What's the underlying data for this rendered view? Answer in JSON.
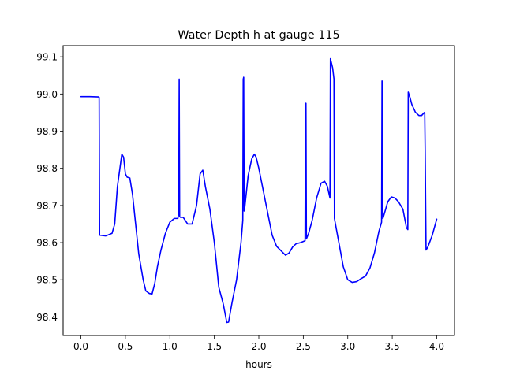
{
  "chart_data": {
    "type": "line",
    "title": "Water Depth h at gauge 115",
    "xlabel": "hours",
    "ylabel": "",
    "xlim": [
      -0.2,
      4.2
    ],
    "ylim": [
      98.35,
      99.13
    ],
    "grid": false,
    "x_ticks": [
      0.0,
      0.5,
      1.0,
      1.5,
      2.0,
      2.5,
      3.0,
      3.5,
      4.0
    ],
    "x_tick_labels": [
      "0.0",
      "0.5",
      "1.0",
      "1.5",
      "2.0",
      "2.5",
      "3.0",
      "3.5",
      "4.0"
    ],
    "y_ticks": [
      98.4,
      98.5,
      98.6,
      98.7,
      98.8,
      98.9,
      99.0,
      99.1
    ],
    "y_tick_labels": [
      "98.4",
      "98.5",
      "98.6",
      "98.7",
      "98.8",
      "98.9",
      "99.0",
      "99.1"
    ],
    "series": [
      {
        "color": "#0000ff",
        "points": [
          [
            0.0,
            98.993
          ],
          [
            0.1,
            98.993
          ],
          [
            0.2,
            98.992
          ],
          [
            0.205,
            98.991
          ],
          [
            0.21,
            98.62
          ],
          [
            0.28,
            98.618
          ],
          [
            0.35,
            98.625
          ],
          [
            0.38,
            98.65
          ],
          [
            0.41,
            98.75
          ],
          [
            0.46,
            98.838
          ],
          [
            0.48,
            98.83
          ],
          [
            0.5,
            98.785
          ],
          [
            0.52,
            98.776
          ],
          [
            0.55,
            98.774
          ],
          [
            0.58,
            98.73
          ],
          [
            0.65,
            98.57
          ],
          [
            0.7,
            98.5
          ],
          [
            0.73,
            98.47
          ],
          [
            0.77,
            98.463
          ],
          [
            0.8,
            98.462
          ],
          [
            0.83,
            98.49
          ],
          [
            0.86,
            98.535
          ],
          [
            0.9,
            98.58
          ],
          [
            0.95,
            98.625
          ],
          [
            1.0,
            98.655
          ],
          [
            1.05,
            98.665
          ],
          [
            1.09,
            98.665
          ],
          [
            1.1,
            98.68
          ],
          [
            1.105,
            99.04
          ],
          [
            1.11,
            98.67
          ],
          [
            1.12,
            98.668
          ],
          [
            1.15,
            98.668
          ],
          [
            1.2,
            98.65
          ],
          [
            1.25,
            98.65
          ],
          [
            1.3,
            98.7
          ],
          [
            1.34,
            98.785
          ],
          [
            1.37,
            98.795
          ],
          [
            1.4,
            98.75
          ],
          [
            1.45,
            98.69
          ],
          [
            1.5,
            98.6
          ],
          [
            1.55,
            98.48
          ],
          [
            1.6,
            98.435
          ],
          [
            1.64,
            98.385
          ],
          [
            1.66,
            98.386
          ],
          [
            1.7,
            98.44
          ],
          [
            1.75,
            98.5
          ],
          [
            1.8,
            98.6
          ],
          [
            1.82,
            98.66
          ],
          [
            1.825,
            99.04
          ],
          [
            1.83,
            99.045
          ],
          [
            1.835,
            98.685
          ],
          [
            1.84,
            98.69
          ],
          [
            1.88,
            98.78
          ],
          [
            1.92,
            98.825
          ],
          [
            1.95,
            98.838
          ],
          [
            1.97,
            98.83
          ],
          [
            2.0,
            98.8
          ],
          [
            2.05,
            98.74
          ],
          [
            2.1,
            98.68
          ],
          [
            2.15,
            98.62
          ],
          [
            2.2,
            98.59
          ],
          [
            2.25,
            98.578
          ],
          [
            2.3,
            98.566
          ],
          [
            2.34,
            98.572
          ],
          [
            2.38,
            98.588
          ],
          [
            2.42,
            98.597
          ],
          [
            2.47,
            98.6
          ],
          [
            2.5,
            98.603
          ],
          [
            2.52,
            98.605
          ],
          [
            2.525,
            98.975
          ],
          [
            2.53,
            98.975
          ],
          [
            2.535,
            98.61
          ],
          [
            2.56,
            98.625
          ],
          [
            2.6,
            98.66
          ],
          [
            2.65,
            98.72
          ],
          [
            2.7,
            98.76
          ],
          [
            2.74,
            98.765
          ],
          [
            2.77,
            98.752
          ],
          [
            2.8,
            98.72
          ],
          [
            2.805,
            99.095
          ],
          [
            2.83,
            99.07
          ],
          [
            2.845,
            99.04
          ],
          [
            2.85,
            98.665
          ],
          [
            2.9,
            98.6
          ],
          [
            2.95,
            98.535
          ],
          [
            3.0,
            98.5
          ],
          [
            3.05,
            98.493
          ],
          [
            3.1,
            98.495
          ],
          [
            3.15,
            98.503
          ],
          [
            3.2,
            98.51
          ],
          [
            3.25,
            98.532
          ],
          [
            3.3,
            98.572
          ],
          [
            3.35,
            98.63
          ],
          [
            3.38,
            98.655
          ],
          [
            3.385,
            99.035
          ],
          [
            3.39,
            99.03
          ],
          [
            3.395,
            98.665
          ],
          [
            3.42,
            98.685
          ],
          [
            3.45,
            98.71
          ],
          [
            3.49,
            98.723
          ],
          [
            3.53,
            98.72
          ],
          [
            3.57,
            98.71
          ],
          [
            3.62,
            98.69
          ],
          [
            3.66,
            98.64
          ],
          [
            3.675,
            98.635
          ],
          [
            3.68,
            99.005
          ],
          [
            3.7,
            98.99
          ],
          [
            3.72,
            98.972
          ],
          [
            3.76,
            98.951
          ],
          [
            3.8,
            98.942
          ],
          [
            3.83,
            98.942
          ],
          [
            3.86,
            98.95
          ],
          [
            3.865,
            98.95
          ],
          [
            3.87,
            98.85
          ],
          [
            3.88,
            98.58
          ],
          [
            3.9,
            98.588
          ],
          [
            3.95,
            98.62
          ],
          [
            4.0,
            98.663
          ]
        ]
      }
    ]
  }
}
